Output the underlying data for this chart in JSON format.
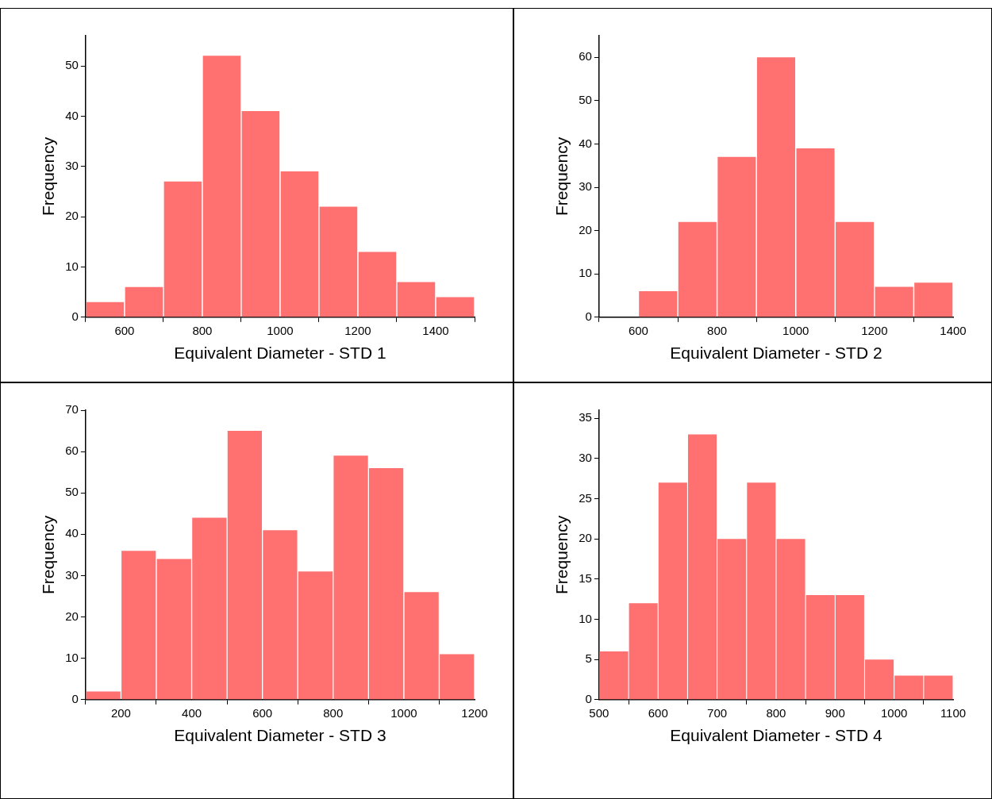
{
  "chart_data": [
    {
      "type": "histogram",
      "xlabel": "Equivalent Diameter - STD 1",
      "ylabel": "Frequency",
      "color": "#ff7070",
      "bins": [
        500,
        600,
        700,
        800,
        900,
        1000,
        1100,
        1200,
        1300,
        1400,
        1500
      ],
      "values": [
        3,
        6,
        27,
        52,
        41,
        29,
        22,
        13,
        7,
        4
      ],
      "xlim": [
        500,
        1500
      ],
      "ylim": [
        0,
        56
      ],
      "xticks": [
        600,
        800,
        1000,
        1200,
        1400
      ],
      "yticks": [
        0,
        10,
        20,
        30,
        40,
        50
      ]
    },
    {
      "type": "histogram",
      "xlabel": "Equivalent Diameter - STD 2",
      "ylabel": "Frequency",
      "color": "#ff7070",
      "bins": [
        600,
        700,
        800,
        900,
        1000,
        1100,
        1200,
        1300,
        1400
      ],
      "values": [
        6,
        22,
        37,
        60,
        39,
        22,
        7,
        8
      ],
      "xlim": [
        500,
        1400
      ],
      "ylim": [
        0,
        65
      ],
      "xticks": [
        600,
        800,
        1000,
        1200,
        1400
      ],
      "yticks": [
        0,
        10,
        20,
        30,
        40,
        50,
        60
      ]
    },
    {
      "type": "histogram",
      "xlabel": "Equivalent Diameter - STD 3",
      "ylabel": "Frequency",
      "color": "#ff7070",
      "bins": [
        100,
        200,
        300,
        400,
        500,
        600,
        700,
        800,
        900,
        1000,
        1100,
        1200
      ],
      "values": [
        2,
        36,
        34,
        44,
        65,
        41,
        31,
        59,
        56,
        26,
        11
      ],
      "xlim": [
        100,
        1200
      ],
      "ylim": [
        0,
        70
      ],
      "xticks": [
        200,
        400,
        600,
        800,
        1000,
        1200
      ],
      "yticks": [
        0,
        10,
        20,
        30,
        40,
        50,
        60,
        70
      ]
    },
    {
      "type": "histogram",
      "xlabel": "Equivalent Diameter - STD 4",
      "ylabel": "Frequency",
      "color": "#ff7070",
      "bins": [
        500,
        550,
        600,
        650,
        700,
        750,
        800,
        850,
        900,
        950,
        1000,
        1050,
        1100
      ],
      "values": [
        6,
        12,
        27,
        33,
        20,
        27,
        20,
        13,
        13,
        5,
        3,
        3
      ],
      "xlim": [
        500,
        1100
      ],
      "ylim": [
        0,
        36
      ],
      "xticks": [
        500,
        600,
        700,
        800,
        900,
        1000,
        1100
      ],
      "yticks": [
        0,
        5,
        10,
        15,
        20,
        25,
        30,
        35
      ]
    }
  ]
}
